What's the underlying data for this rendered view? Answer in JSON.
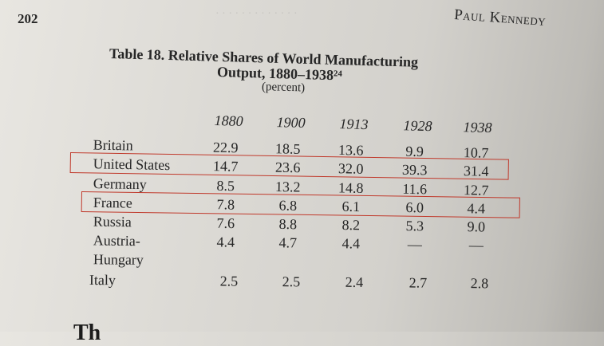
{
  "page": {
    "number": "202",
    "running_head": "Paul Kennedy"
  },
  "table": {
    "title_line1": "Table 18. Relative Shares of World Manufacturing",
    "title_line2": "Output, 1880–1938²⁴",
    "unit": "(percent)",
    "years": [
      "1880",
      "1900",
      "1913",
      "1928",
      "1938"
    ],
    "rows": [
      {
        "country": "Britain",
        "values": [
          "22.9",
          "18.5",
          "13.6",
          "9.9",
          "10.7"
        ]
      },
      {
        "country": "United States",
        "values": [
          "14.7",
          "23.6",
          "32.0",
          "39.3",
          "31.4"
        ]
      },
      {
        "country": "Germany",
        "values": [
          "8.5",
          "13.2",
          "14.8",
          "11.6",
          "12.7"
        ]
      },
      {
        "country": "France",
        "values": [
          "7.8",
          "6.8",
          "6.1",
          "6.0",
          "4.4"
        ]
      },
      {
        "country": "Russia",
        "values": [
          "7.6",
          "8.8",
          "8.2",
          "5.3",
          "9.0"
        ]
      },
      {
        "country": "Austria-",
        "values": [
          "4.4",
          "4.7",
          "4.4",
          "—",
          "—"
        ]
      },
      {
        "country": "Hungary",
        "values": [
          "",
          "",
          "",
          "",
          ""
        ]
      },
      {
        "country": "Italy",
        "values": [
          "2.5",
          "2.5",
          "2.4",
          "2.7",
          "2.8"
        ]
      }
    ]
  },
  "bottom_fragment": "Th",
  "highlight_color": "#c0392b"
}
